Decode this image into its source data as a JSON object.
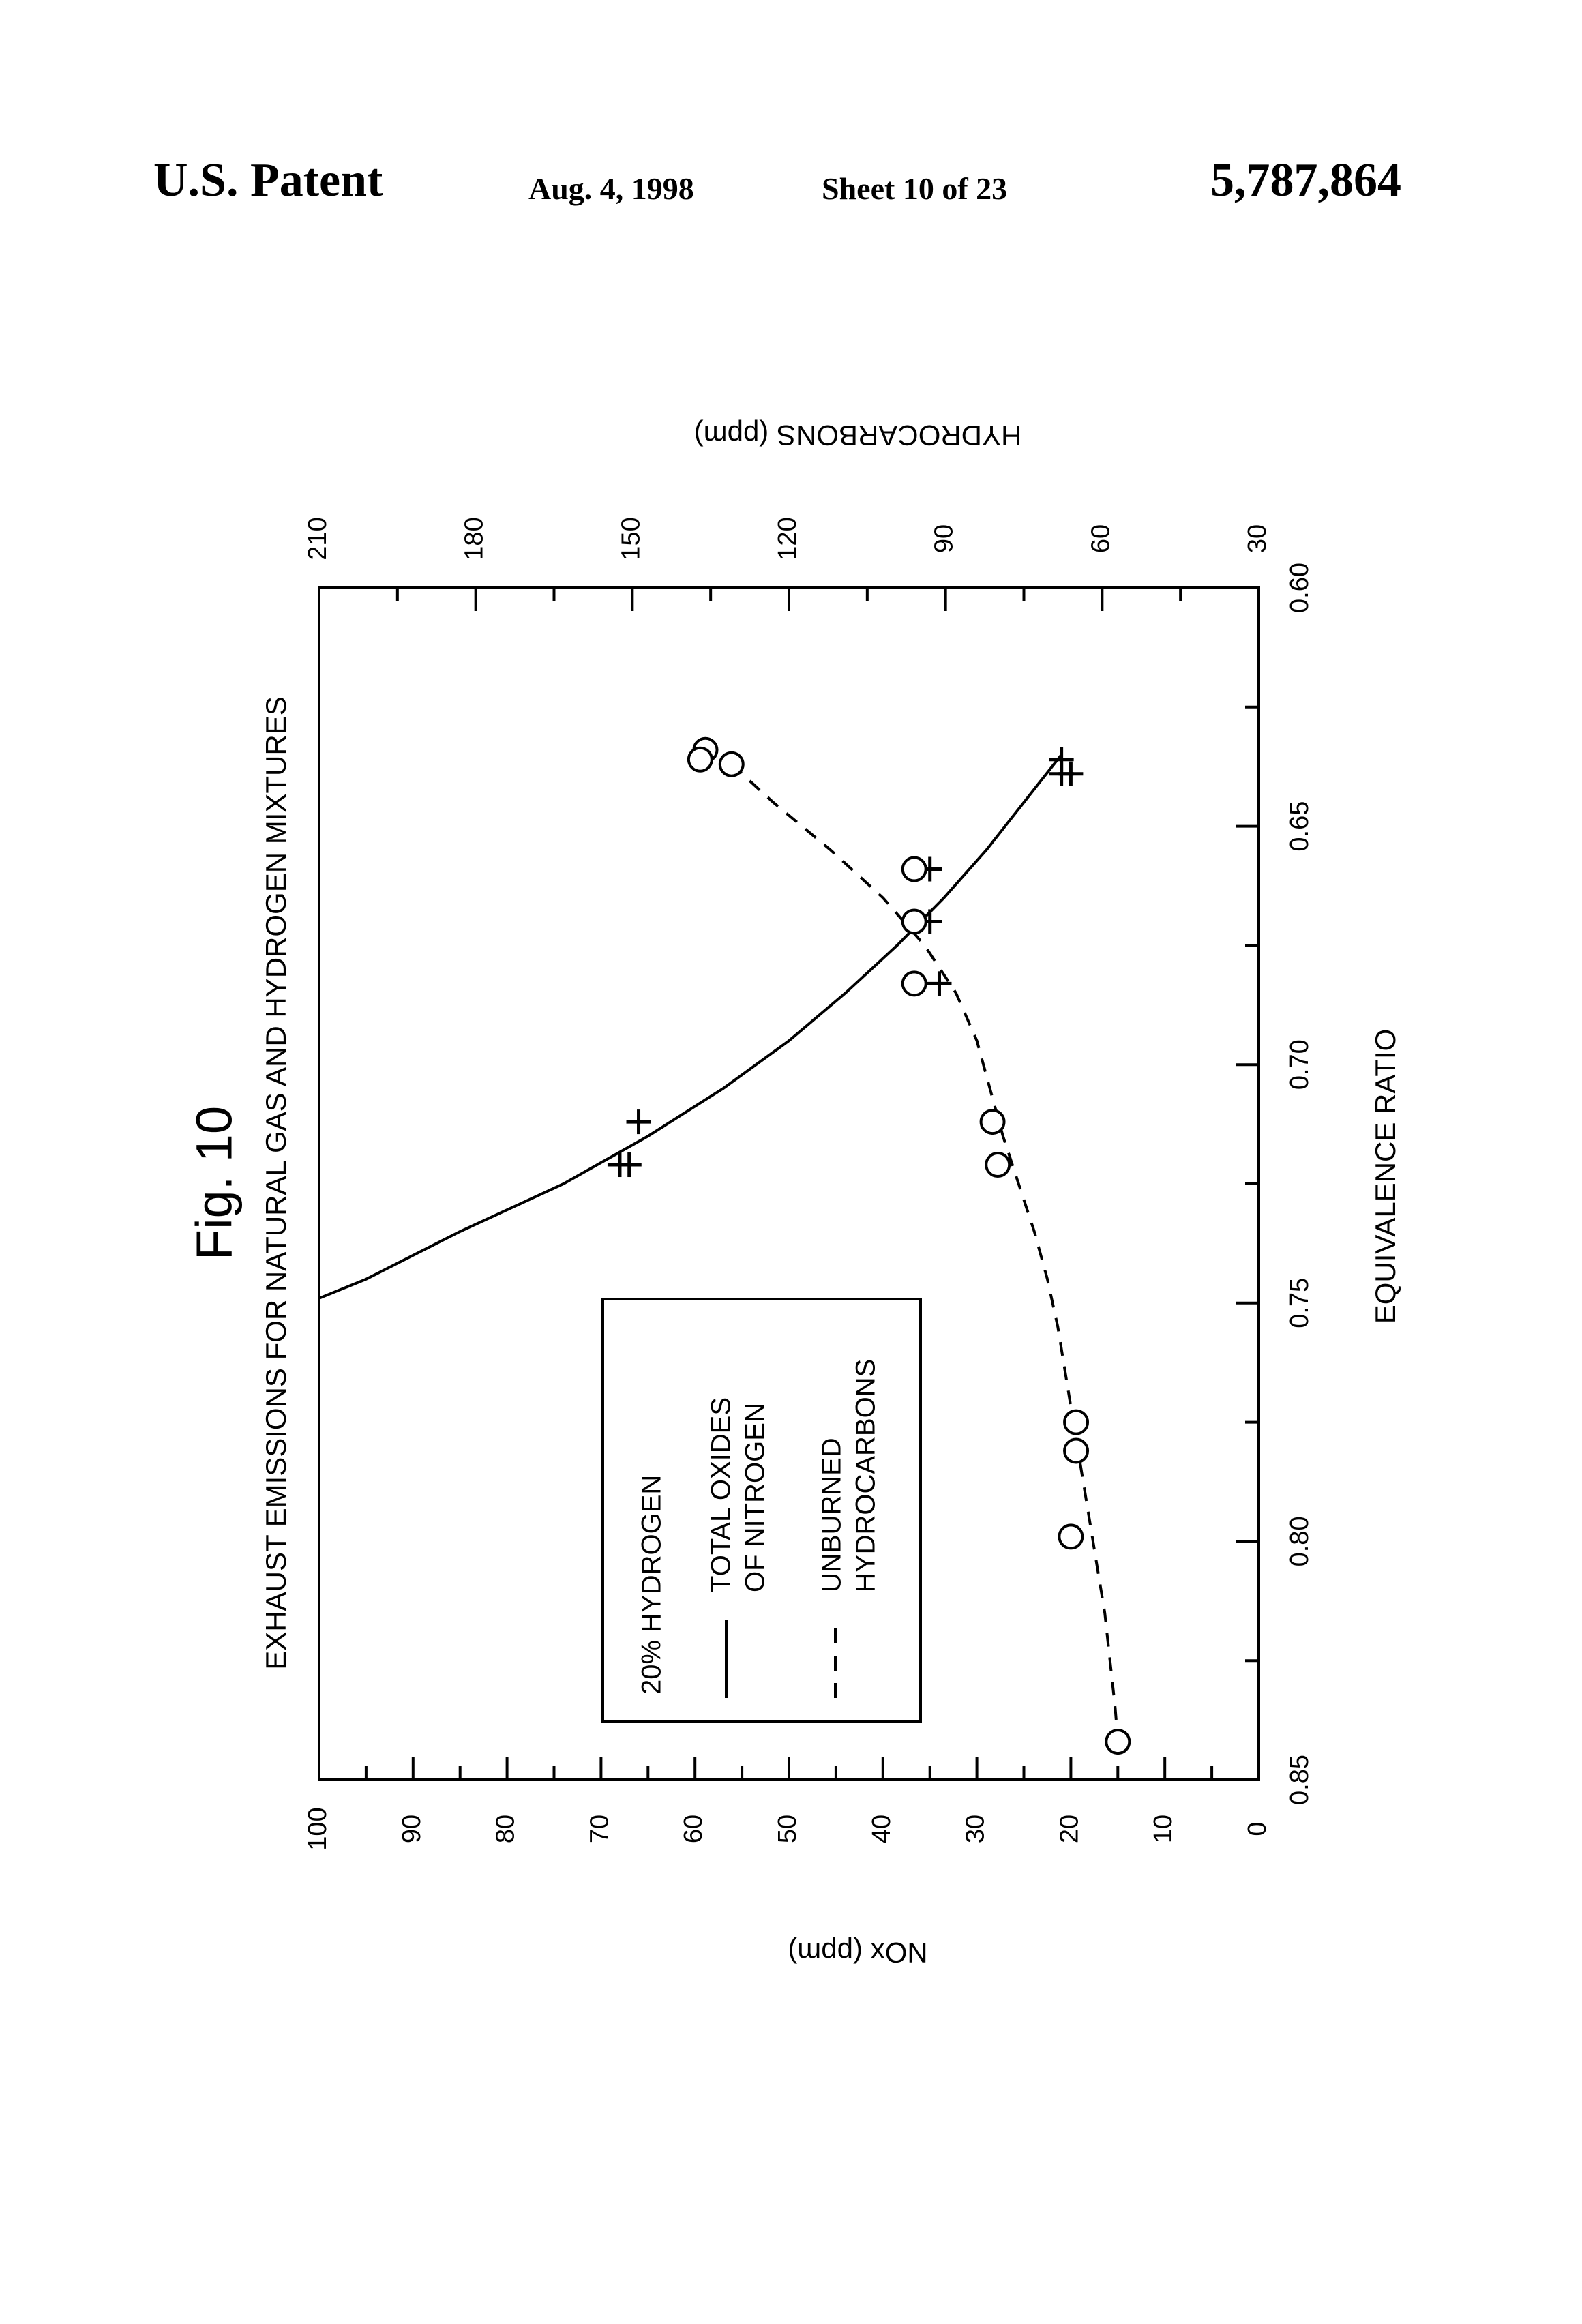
{
  "header": {
    "left": "U.S. Patent",
    "date": "Aug. 4, 1998",
    "sheet": "Sheet 10 of 23",
    "number": "5,787,864"
  },
  "figure": {
    "label": "Fig. 10",
    "title": "EXHAUST EMISSIONS FOR NATURAL GAS AND HYDROGEN MIXTURES"
  },
  "chart_data": {
    "type": "scatter",
    "orientation": "rotated 90 degrees counter-clockwise",
    "title": "EXHAUST EMISSIONS FOR NATURAL GAS AND HYDROGEN MIXTURES",
    "xlabel": "EQUIVALENCE RATIO",
    "ylabel": "NOx (ppm)",
    "y2label": "HYDROCARBONS (ppm)",
    "xlim": [
      0.6,
      0.85
    ],
    "ylim": [
      0,
      100
    ],
    "y2lim": [
      30,
      210
    ],
    "xticks": [
      "0.60",
      "0.65",
      "0.70",
      "0.75",
      "0.80",
      "0.85"
    ],
    "yticks": [
      "0",
      "10",
      "20",
      "30",
      "40",
      "50",
      "60",
      "70",
      "80",
      "90",
      "100"
    ],
    "y2ticks": [
      "30",
      "60",
      "90",
      "120",
      "150",
      "180",
      "210"
    ],
    "legend": {
      "title": "20% HYDROGEN",
      "position": "lower-center",
      "entries": [
        {
          "line": "solid",
          "lines": [
            "TOTAL OXIDES",
            "OF NITROGEN"
          ]
        },
        {
          "line": "dashed",
          "lines": [
            "UNBURNED",
            "HYDROCARBONS"
          ]
        }
      ]
    },
    "series": [
      {
        "key": "nox",
        "marker": "plus",
        "line": "solid",
        "axis": "left",
        "points": [
          [
            0.636,
            21
          ],
          [
            0.639,
            20
          ],
          [
            0.639,
            21
          ],
          [
            0.659,
            35
          ],
          [
            0.67,
            35
          ],
          [
            0.683,
            34
          ],
          [
            0.712,
            66
          ],
          [
            0.721,
            67
          ],
          [
            0.721,
            68
          ]
        ],
        "curve": [
          [
            0.635,
            21
          ],
          [
            0.645,
            25
          ],
          [
            0.655,
            29
          ],
          [
            0.665,
            33.5
          ],
          [
            0.675,
            38.5
          ],
          [
            0.685,
            44
          ],
          [
            0.695,
            50
          ],
          [
            0.705,
            57
          ],
          [
            0.715,
            65
          ],
          [
            0.725,
            74
          ],
          [
            0.735,
            85
          ],
          [
            0.745,
            95
          ],
          [
            0.749,
            100
          ]
        ]
      },
      {
        "key": "hydrocarbons",
        "marker": "circle",
        "line": "dashed",
        "axis": "right",
        "points": [
          [
            0.634,
            136
          ],
          [
            0.636,
            137
          ],
          [
            0.637,
            131
          ],
          [
            0.659,
            96
          ],
          [
            0.67,
            96
          ],
          [
            0.683,
            96
          ],
          [
            0.712,
            81
          ],
          [
            0.721,
            80
          ],
          [
            0.775,
            65
          ],
          [
            0.781,
            65
          ],
          [
            0.799,
            66
          ],
          [
            0.842,
            57
          ]
        ],
        "curve": [
          [
            0.637,
            131
          ],
          [
            0.645,
            123
          ],
          [
            0.655,
            112
          ],
          [
            0.665,
            102
          ],
          [
            0.675,
            94
          ],
          [
            0.685,
            88
          ],
          [
            0.695,
            84
          ],
          [
            0.705,
            81.5
          ],
          [
            0.715,
            79
          ],
          [
            0.725,
            76
          ],
          [
            0.735,
            73
          ],
          [
            0.745,
            70.5
          ],
          [
            0.755,
            68.5
          ],
          [
            0.765,
            67
          ],
          [
            0.775,
            65.5
          ],
          [
            0.785,
            64
          ],
          [
            0.795,
            62.5
          ],
          [
            0.805,
            61
          ],
          [
            0.815,
            59.5
          ],
          [
            0.825,
            58.5
          ],
          [
            0.835,
            57.5
          ],
          [
            0.842,
            57
          ]
        ]
      }
    ]
  }
}
